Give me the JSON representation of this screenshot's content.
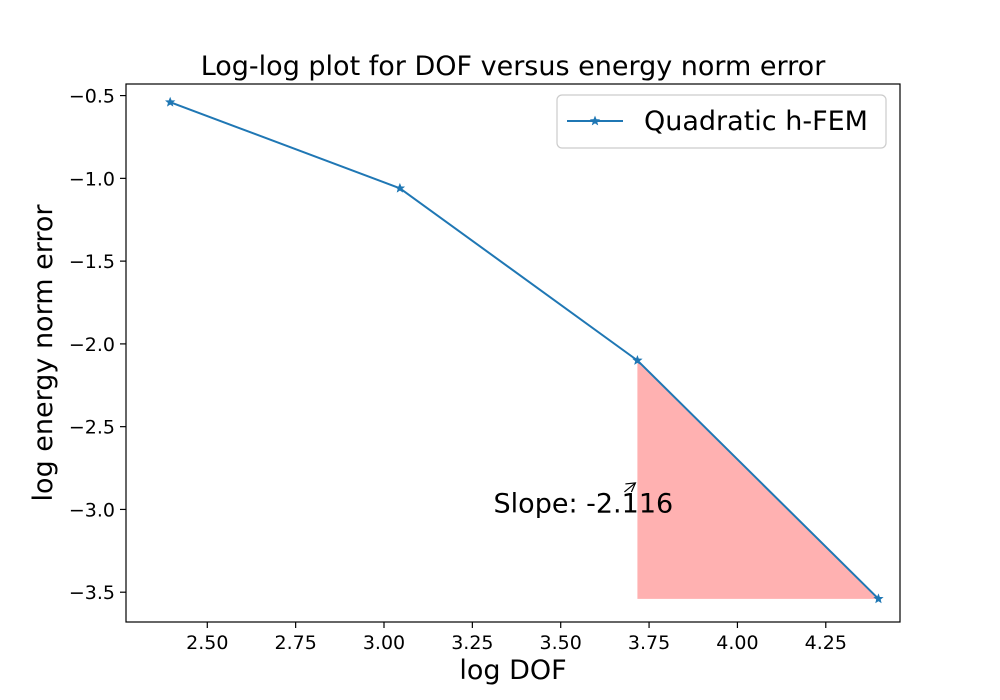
{
  "chart_data": {
    "type": "line",
    "title": "Log-log plot for DOF versus energy norm error",
    "xlabel": "log DOF",
    "ylabel": "log energy norm error",
    "xlim": [
      2.27,
      4.46
    ],
    "ylim": [
      -3.68,
      -0.43
    ],
    "xticks": [
      2.5,
      2.75,
      3.0,
      3.25,
      3.5,
      3.75,
      4.0,
      4.25
    ],
    "xtick_labels": [
      "2.50",
      "2.75",
      "3.00",
      "3.25",
      "3.50",
      "3.75",
      "4.00",
      "4.25"
    ],
    "yticks": [
      -0.5,
      -1.0,
      -1.5,
      -2.0,
      -2.5,
      -3.0,
      -3.5
    ],
    "ytick_labels": [
      "−0.5",
      "−1.0",
      "−1.5",
      "−2.0",
      "−2.5",
      "−3.0",
      "−3.5"
    ],
    "grid": false,
    "legend_position": "top-right",
    "series": [
      {
        "name": "Quadratic h-FEM",
        "color": "#1f77b4",
        "marker": "star",
        "x": [
          2.395,
          3.045,
          3.717,
          4.399
        ],
        "y": [
          -0.54,
          -1.06,
          -2.1,
          -3.54
        ]
      }
    ],
    "slope_triangle": {
      "color": "#ffb1b1",
      "vertices": [
        [
          3.717,
          -2.1
        ],
        [
          3.717,
          -3.54
        ],
        [
          4.399,
          -3.54
        ]
      ]
    },
    "annotation": {
      "text": "Slope: -2.116",
      "arrow_to": [
        3.717,
        -2.84
      ],
      "text_at": [
        3.31,
        -3.02
      ]
    }
  }
}
